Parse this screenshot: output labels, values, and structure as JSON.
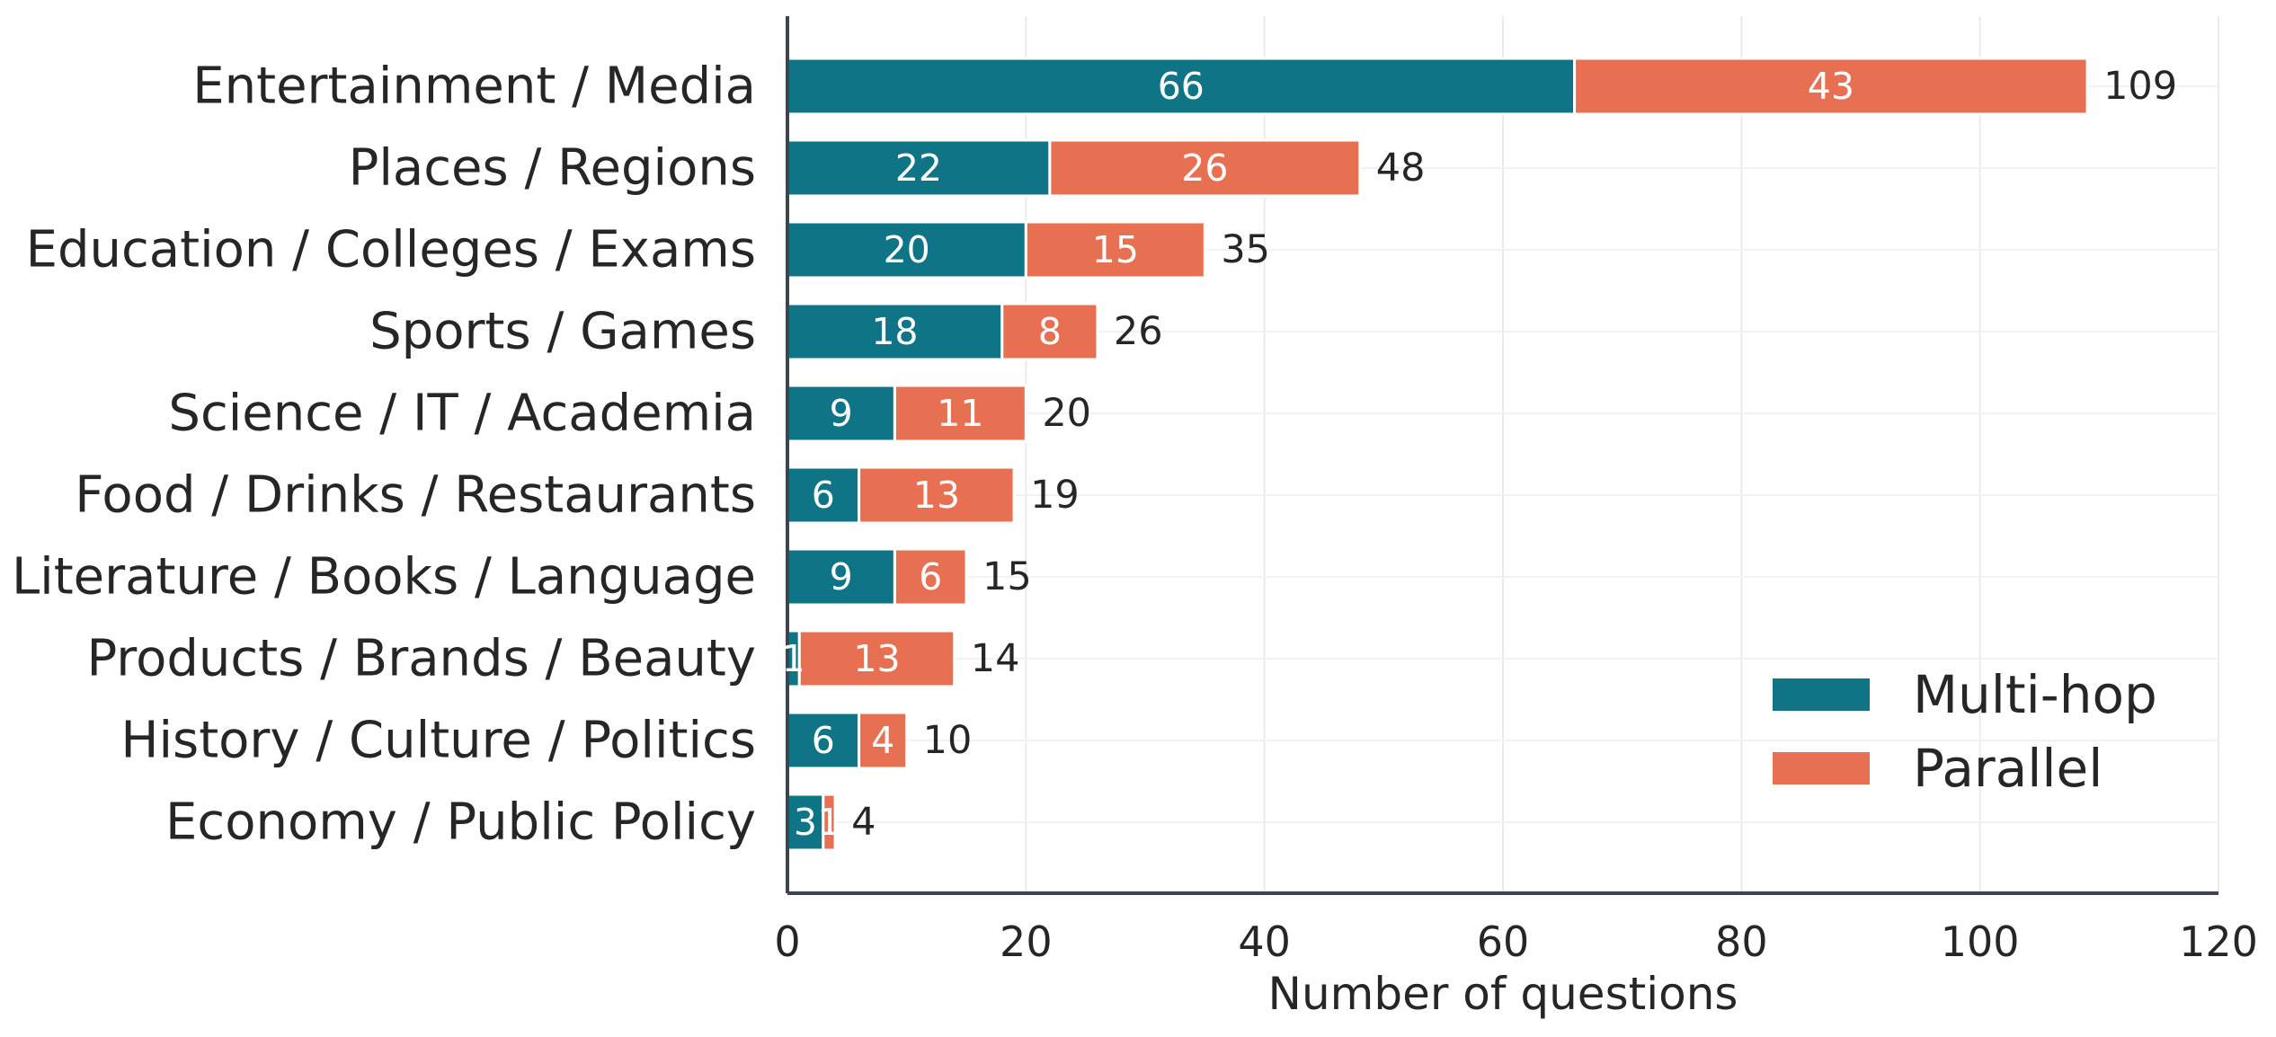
{
  "chart_data": {
    "type": "bar",
    "orientation": "horizontal",
    "stacked": true,
    "categories": [
      "Entertainment / Media",
      "Places / Regions",
      "Education / Colleges / Exams",
      "Sports / Games",
      "Science / IT / Academia",
      "Food / Drinks / Restaurants",
      "Literature / Books / Language",
      "Products / Brands / Beauty",
      "History / Culture / Politics",
      "Economy / Public Policy"
    ],
    "series": [
      {
        "name": "Multi-hop",
        "color": "#107487",
        "values": [
          66,
          22,
          20,
          18,
          9,
          6,
          9,
          1,
          6,
          3
        ]
      },
      {
        "name": "Parallel",
        "color": "#E87052",
        "values": [
          43,
          26,
          15,
          8,
          11,
          13,
          6,
          13,
          4,
          1
        ]
      }
    ],
    "totals": [
      109,
      48,
      35,
      26,
      20,
      19,
      15,
      14,
      10,
      4
    ],
    "xlabel": "Number of questions",
    "ylabel": "",
    "xlim": [
      0,
      120
    ],
    "xticks": [
      0,
      20,
      40,
      60,
      80,
      100,
      120
    ],
    "grid": "vertical",
    "legend_position": "lower-right"
  }
}
